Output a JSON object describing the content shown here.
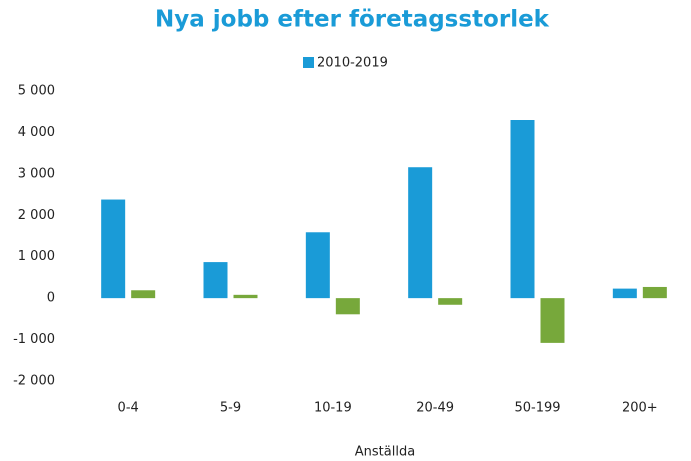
{
  "chart_data": {
    "type": "bar",
    "title": "Nya jobb efter företagsstorlek",
    "x_label": "Anställda",
    "categories": [
      "0-4",
      "5-9",
      "10-19",
      "20-49",
      "50-199",
      "200+"
    ],
    "series": [
      {
        "name": "2010-2019",
        "color": "#1a9bd7",
        "values": [
          2380,
          870,
          1590,
          3160,
          4300,
          230
        ]
      },
      {
        "color": "#77a83b",
        "values": [
          190,
          80,
          -390,
          -160,
          -1080,
          270
        ]
      }
    ],
    "ylim": [
      -2000,
      5000
    ],
    "yticks": [
      {
        "value": -2000,
        "label": "-2 000"
      },
      {
        "value": -1000,
        "label": "-1 000"
      },
      0,
      {
        "value": 1000,
        "label": "1 000"
      },
      {
        "value": 2000,
        "label": "2 000"
      },
      {
        "value": 3000,
        "label": "3 000"
      },
      {
        "value": 4000,
        "label": "4 000"
      },
      {
        "value": 5000,
        "label": "5 000"
      }
    ],
    "legend": "top",
    "grid": false
  }
}
